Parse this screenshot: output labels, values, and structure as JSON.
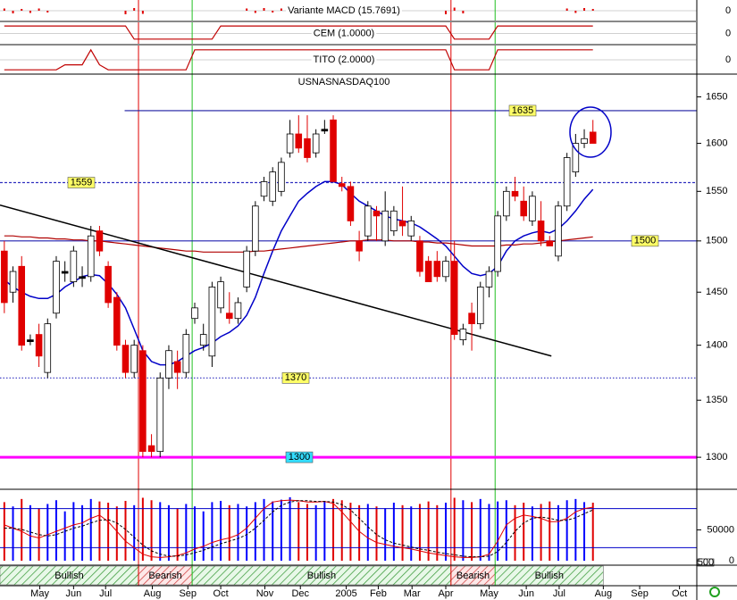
{
  "chart_data": [
    {
      "type": "bar",
      "title": "Variante MACD (15.7691)",
      "color": "#e00000",
      "ylim": [
        -2,
        2
      ],
      "yticks": [
        0
      ],
      "values": [
        0.5,
        -0.6,
        0.4,
        -0.5,
        0.5,
        -0.4,
        0,
        0,
        0,
        0,
        0,
        0,
        0,
        0,
        -0.8,
        0.6,
        -0.7,
        0,
        0,
        0,
        0,
        0,
        0,
        0,
        0,
        0,
        0,
        0,
        0.5,
        -0.5,
        0.6,
        -0.4,
        0.5,
        0,
        0,
        0,
        0,
        0,
        0,
        0,
        0,
        0,
        0,
        0,
        0,
        0,
        0,
        0,
        0,
        0,
        0,
        -0.8,
        0.7,
        -0.6,
        0,
        0,
        0,
        0,
        0,
        0,
        0,
        0,
        0,
        0,
        0,
        0.5,
        -0.5,
        0.6,
        0.4
      ]
    },
    {
      "type": "line",
      "title": "CEM (1.0000)",
      "color": "#c00000",
      "ylim": [
        -1,
        1
      ],
      "yticks": [
        0
      ],
      "values": [
        0.8,
        0.8,
        0.8,
        0.8,
        0.8,
        0.8,
        0.8,
        0.8,
        0.8,
        0.8,
        0.8,
        0.8,
        0.8,
        0.8,
        0.8,
        -0.6,
        -0.6,
        -0.6,
        -0.6,
        -0.6,
        -0.6,
        -0.6,
        -0.6,
        -0.6,
        -0.6,
        0.8,
        0.8,
        0.8,
        0.8,
        0.8,
        0.8,
        0.8,
        0.8,
        0.8,
        0.8,
        0.8,
        0.8,
        0.8,
        0.8,
        0.8,
        0.8,
        0.8,
        0.8,
        0.8,
        0.8,
        0.8,
        0.8,
        0.8,
        0.8,
        0.8,
        0.8,
        0.8,
        -0.6,
        -0.6,
        -0.6,
        -0.6,
        -0.6,
        0.8,
        0.8,
        0.8,
        0.8,
        0.8,
        0.8,
        0.8,
        0.8,
        0.8,
        0.8,
        0.8,
        0.8
      ]
    },
    {
      "type": "line",
      "title": "TITO (2.0000)",
      "color": "#c00000",
      "ylim": [
        -1,
        1
      ],
      "yticks": [
        0
      ],
      "values": [
        -0.8,
        -0.8,
        -0.8,
        -0.8,
        -0.8,
        -0.8,
        -0.8,
        -0.4,
        -0.4,
        -0.4,
        0.8,
        -0.4,
        -0.8,
        -0.8,
        -0.8,
        -0.8,
        -0.8,
        -0.8,
        -0.8,
        -0.8,
        -0.8,
        -0.8,
        0.8,
        0.8,
        0.8,
        0.8,
        0.8,
        0.8,
        0.8,
        0.8,
        0.8,
        0.8,
        0.8,
        0.8,
        0.8,
        0.8,
        0.8,
        0.8,
        0.8,
        0.8,
        0.8,
        0.8,
        0.8,
        0.8,
        0.8,
        0.8,
        0.8,
        0.8,
        0.8,
        0.8,
        0.8,
        0.8,
        -0.8,
        -0.8,
        -0.8,
        -0.8,
        -0.8,
        0.8,
        0.8,
        0.8,
        0.8,
        0.8,
        0.8,
        0.8,
        0.8,
        0.8,
        0.8,
        0.8,
        0.8
      ]
    },
    {
      "type": "candlestick",
      "title": "USNASNASDAQ100",
      "log_scale": true,
      "up_color": "#ffffff",
      "down_color": "#e00000",
      "xlim": [
        -0.5,
        80
      ],
      "ylim": [
        1275,
        1675
      ],
      "yticks": [
        1300,
        1350,
        1400,
        1450,
        1500,
        1550,
        1600,
        1650
      ],
      "xticks": [
        {
          "value": 4.1,
          "label": "May"
        },
        {
          "value": 8,
          "label": "Jun"
        },
        {
          "value": 11.7,
          "label": "Jul"
        },
        {
          "value": 17.1,
          "label": "Aug"
        },
        {
          "value": 21.2,
          "label": "Sep"
        },
        {
          "value": 25,
          "label": "Oct"
        },
        {
          "value": 30.1,
          "label": "Nov"
        },
        {
          "value": 34.2,
          "label": "Dec"
        },
        {
          "value": 39.5,
          "label": "2005"
        },
        {
          "value": 43.2,
          "label": "Feb"
        },
        {
          "value": 47.1,
          "label": "Mar"
        },
        {
          "value": 51,
          "label": "Apr"
        },
        {
          "value": 56,
          "label": "May"
        },
        {
          "value": 60.3,
          "label": "Jun"
        },
        {
          "value": 64.1,
          "label": "Jul"
        },
        {
          "value": 69.2,
          "label": "Aug"
        },
        {
          "value": 73.4,
          "label": "Sep"
        },
        {
          "value": 78,
          "label": "Oct"
        }
      ],
      "open": [
        1490,
        1450,
        1475,
        1405,
        1410,
        1375,
        1430,
        1470,
        1460,
        1465,
        1465,
        1510,
        1475,
        1445,
        1400,
        1375,
        1395,
        1310,
        1305,
        1370,
        1385,
        1375,
        1425,
        1400,
        1390,
        1435,
        1430,
        1425,
        1455,
        1490,
        1545,
        1540,
        1550,
        1590,
        1610,
        1605,
        1590,
        1615,
        1625,
        1558,
        1555,
        1500,
        1505,
        1530,
        1500,
        1510,
        1520,
        1505,
        1500,
        1480,
        1480,
        1465,
        1480,
        1405,
        1430,
        1420,
        1455,
        1470,
        1525,
        1550,
        1540,
        1520,
        1520,
        1500,
        1485,
        1535,
        1570,
        1600,
        1612
      ],
      "high": [
        1500,
        1475,
        1485,
        1410,
        1420,
        1425,
        1485,
        1480,
        1495,
        1475,
        1515,
        1515,
        1480,
        1450,
        1405,
        1405,
        1400,
        1320,
        1375,
        1400,
        1395,
        1415,
        1440,
        1420,
        1460,
        1465,
        1450,
        1445,
        1495,
        1540,
        1565,
        1575,
        1585,
        1625,
        1630,
        1630,
        1615,
        1625,
        1630,
        1565,
        1560,
        1510,
        1540,
        1535,
        1550,
        1535,
        1555,
        1525,
        1505,
        1485,
        1490,
        1485,
        1500,
        1420,
        1440,
        1460,
        1475,
        1530,
        1555,
        1565,
        1555,
        1550,
        1540,
        1505,
        1540,
        1590,
        1610,
        1615,
        1625
      ],
      "low": [
        1430,
        1440,
        1395,
        1400,
        1380,
        1370,
        1425,
        1460,
        1455,
        1455,
        1460,
        1485,
        1435,
        1395,
        1370,
        1370,
        1300,
        1300,
        1300,
        1360,
        1360,
        1370,
        1420,
        1395,
        1380,
        1430,
        1420,
        1420,
        1450,
        1485,
        1540,
        1535,
        1545,
        1585,
        1590,
        1580,
        1585,
        1610,
        1560,
        1550,
        1515,
        1480,
        1500,
        1500,
        1495,
        1505,
        1505,
        1500,
        1465,
        1460,
        1460,
        1460,
        1405,
        1400,
        1395,
        1415,
        1445,
        1465,
        1520,
        1540,
        1520,
        1515,
        1495,
        1495,
        1480,
        1530,
        1565,
        1595,
        1600
      ],
      "close": [
        1440,
        1470,
        1400,
        1405,
        1390,
        1420,
        1480,
        1470,
        1490,
        1465,
        1505,
        1490,
        1440,
        1400,
        1375,
        1400,
        1305,
        1305,
        1370,
        1395,
        1375,
        1410,
        1435,
        1410,
        1455,
        1460,
        1425,
        1440,
        1490,
        1535,
        1560,
        1570,
        1580,
        1610,
        1595,
        1585,
        1610,
        1615,
        1560,
        1555,
        1520,
        1490,
        1535,
        1525,
        1530,
        1530,
        1515,
        1520,
        1470,
        1460,
        1465,
        1480,
        1410,
        1415,
        1420,
        1455,
        1470,
        1525,
        1550,
        1545,
        1525,
        1545,
        1500,
        1495,
        1535,
        1585,
        1600,
        1605,
        1600
      ],
      "moving_averages": [
        {
          "color": "#0000c8",
          "values": [
            1462,
            1455,
            1450,
            1446,
            1444,
            1444,
            1448,
            1455,
            1460,
            1465,
            1467,
            1466,
            1458,
            1448,
            1435,
            1415,
            1395,
            1385,
            1382,
            1382,
            1385,
            1390,
            1395,
            1398,
            1402,
            1408,
            1412,
            1418,
            1428,
            1445,
            1468,
            1490,
            1510,
            1525,
            1540,
            1548,
            1555,
            1560,
            1560,
            1557,
            1548,
            1540,
            1535,
            1530,
            1525,
            1522,
            1520,
            1518,
            1514,
            1508,
            1502,
            1495,
            1485,
            1475,
            1468,
            1466,
            1468,
            1475,
            1490,
            1500,
            1505,
            1508,
            1510,
            1508,
            1512,
            1520,
            1530,
            1542,
            1552
          ]
        },
        {
          "color": "#b00000",
          "values": [
            1505,
            1505,
            1504,
            1504,
            1503,
            1503,
            1502,
            1502,
            1501,
            1501,
            1500,
            1500,
            1499,
            1498,
            1497,
            1496,
            1495,
            1494,
            1493,
            1492,
            1491,
            1490,
            1490,
            1489,
            1489,
            1489,
            1489,
            1489,
            1489,
            1490,
            1490,
            1491,
            1492,
            1493,
            1494,
            1495,
            1496,
            1497,
            1498,
            1499,
            1500,
            1500,
            1501,
            1501,
            1501,
            1500,
            1500,
            1500,
            1499,
            1499,
            1498,
            1498,
            1497,
            1496,
            1495,
            1495,
            1495,
            1495,
            1496,
            1496,
            1497,
            1497,
            1498,
            1499,
            1500,
            1501,
            1502,
            1503,
            1504
          ]
        }
      ],
      "levels": [
        {
          "value": 1635,
          "color": "#1a1aa0",
          "style": "solid",
          "from": 13.9,
          "label_fill": "#ffff66"
        },
        {
          "value": 1559,
          "color": "#3030c0",
          "style": "dashed",
          "label_fill": "#ffff66"
        },
        {
          "value": 1500,
          "color": "#2020b0",
          "style": "solid",
          "label_fill": "#ffff66"
        },
        {
          "value": 1370,
          "color": "#3030c0",
          "style": "dotted",
          "label_fill": "#ffff66"
        },
        {
          "value": 1300,
          "color": "#ff00ff",
          "style": "thick",
          "label_fill": "#33ddff"
        }
      ],
      "trendline": {
        "x": [
          -0.5,
          63.2
        ],
        "y": [
          1536,
          1390
        ],
        "color": "#000000"
      },
      "regimes": [
        {
          "label": "Bullish",
          "from": -0.5,
          "to": 15.5
        },
        {
          "label": "Bearish",
          "from": 15.5,
          "to": 21.7
        },
        {
          "label": "Bullish",
          "from": 21.7,
          "to": 51.6
        },
        {
          "label": "Bearish",
          "from": 51.6,
          "to": 56.7
        },
        {
          "label": "Bullish",
          "from": 56.7,
          "to": 69.2
        }
      ]
    },
    {
      "type": "volume",
      "up_color": "#0000ff",
      "down_color": "#e00000",
      "ylim": [
        0,
        110000
      ],
      "yticks": [
        0,
        50000
      ],
      "scale_label": "500",
      "values": [
        95000,
        88000,
        100000,
        90000,
        85000,
        92000,
        98000,
        80000,
        95000,
        90000,
        100000,
        96000,
        94000,
        88000,
        97000,
        90000,
        102000,
        98000,
        95000,
        90000,
        85000,
        92000,
        88000,
        80000,
        95000,
        97000,
        90000,
        92000,
        88000,
        95000,
        100000,
        96000,
        99000,
        103000,
        95000,
        92000,
        90000,
        96000,
        100000,
        98000,
        94000,
        90000,
        92000,
        88000,
        85000,
        94000,
        90000,
        88000,
        92000,
        96000,
        90000,
        94000,
        102000,
        98000,
        95000,
        100000,
        92000,
        96000,
        98000,
        90000,
        94000,
        88000,
        92000,
        96000,
        90000,
        98000,
        100000,
        95000,
        94000
      ],
      "oscillator": {
        "ylim": [
          0,
          100
        ],
        "levels": [
          80,
          20
        ],
        "level_color": "#0000c8",
        "series": [
          {
            "color": "#e00000",
            "style": "solid",
            "values": [
              55,
              50,
              45,
              38,
              35,
              40,
              45,
              50,
              55,
              58,
              65,
              70,
              60,
              45,
              30,
              20,
              10,
              6,
              5,
              6,
              8,
              12,
              18,
              22,
              28,
              32,
              35,
              40,
              50,
              65,
              80,
              90,
              92,
              93,
              92,
              90,
              90,
              91,
              88,
              75,
              60,
              45,
              35,
              28,
              25,
              22,
              20,
              18,
              15,
              12,
              10,
              8,
              6,
              5,
              5,
              6,
              10,
              30,
              55,
              65,
              70,
              68,
              65,
              60,
              60,
              65,
              75,
              80,
              82
            ]
          },
          {
            "color": "#000000",
            "style": "dashed",
            "values": [
              50,
              50,
              48,
              44,
              40,
              38,
              40,
              45,
              50,
              53,
              58,
              62,
              63,
              58,
              48,
              36,
              24,
              15,
              10,
              7,
              7,
              9,
              12,
              16,
              21,
              26,
              30,
              34,
              40,
              50,
              62,
              75,
              85,
              90,
              92,
              92,
              91,
              91,
              90,
              86,
              78,
              65,
              52,
              40,
              32,
              27,
              24,
              21,
              18,
              16,
              13,
              11,
              9,
              7,
              6,
              6,
              7,
              14,
              28,
              45,
              58,
              65,
              67,
              65,
              62,
              62,
              66,
              72,
              78
            ]
          }
        ]
      }
    }
  ]
}
